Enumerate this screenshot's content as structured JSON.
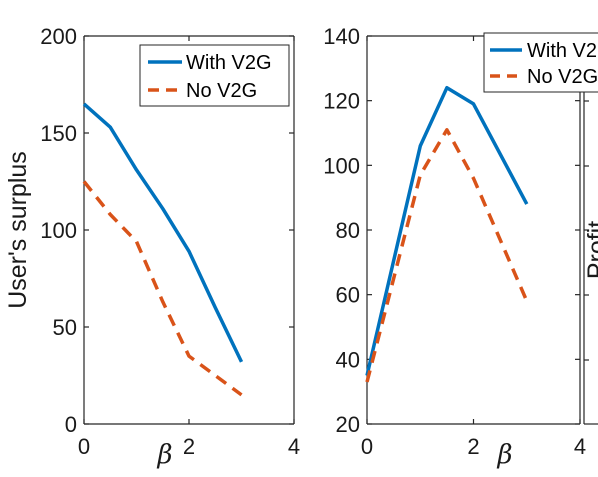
{
  "colors": {
    "with_v2g": "#0072BD",
    "no_v2g": "#D95319",
    "axis": "#262626"
  },
  "chart_data": [
    {
      "type": "line",
      "title": "",
      "xlabel": "β",
      "ylabel": "User's surplus",
      "xlim": [
        0,
        4
      ],
      "ylim": [
        0,
        200
      ],
      "xticks": [
        0,
        2,
        4
      ],
      "yticks": [
        0,
        50,
        100,
        150,
        200
      ],
      "legend": {
        "placement": "top-right",
        "entries": [
          "With V2G",
          "No V2G"
        ]
      },
      "series": [
        {
          "name": "With V2G",
          "style": "solid",
          "x": [
            0,
            0.5,
            1,
            1.5,
            2,
            2.5,
            3
          ],
          "y": [
            165,
            153,
            131,
            111,
            89,
            60,
            32
          ]
        },
        {
          "name": "No V2G",
          "style": "dashed",
          "x": [
            0,
            0.5,
            1,
            1.5,
            2,
            2.5,
            3
          ],
          "y": [
            125,
            108,
            94,
            63,
            35,
            25,
            15
          ]
        }
      ]
    },
    {
      "type": "line",
      "title": "",
      "xlabel": "β",
      "ylabel": "",
      "xlim": [
        0,
        4
      ],
      "ylim": [
        20,
        140
      ],
      "xticks": [
        0,
        2,
        4
      ],
      "yticks": [
        20,
        40,
        60,
        80,
        100,
        120,
        140
      ],
      "legend": {
        "placement": "top-right",
        "entries": [
          "With V2",
          "No V2G"
        ]
      },
      "series": [
        {
          "name": "With V2",
          "style": "solid",
          "x": [
            0,
            1,
            1.5,
            2,
            3
          ],
          "y": [
            35,
            106,
            124,
            119,
            88
          ]
        },
        {
          "name": "No V2G",
          "style": "dashed",
          "x": [
            0,
            1,
            1.5,
            2,
            3
          ],
          "y": [
            33,
            97,
            111,
            96,
            58
          ]
        }
      ]
    },
    {
      "type": "line",
      "title": "",
      "xlabel": "",
      "ylabel": "Profit",
      "xticks": [],
      "yticks": [],
      "series": []
    }
  ]
}
